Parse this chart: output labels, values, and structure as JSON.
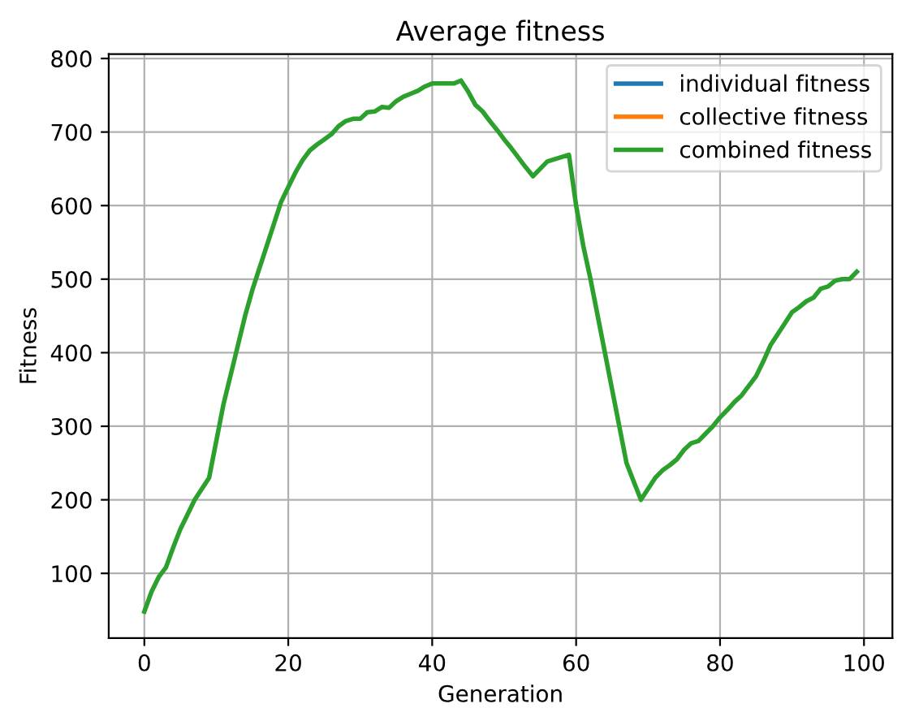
{
  "chart_data": {
    "type": "line",
    "title": "Average fitness",
    "xlabel": "Generation",
    "ylabel": "Fitness",
    "x": [
      0,
      1,
      2,
      3,
      4,
      5,
      6,
      7,
      8,
      9,
      10,
      11,
      12,
      13,
      14,
      15,
      16,
      17,
      18,
      19,
      20,
      21,
      22,
      23,
      24,
      25,
      26,
      27,
      28,
      29,
      30,
      31,
      32,
      33,
      34,
      35,
      36,
      37,
      38,
      39,
      40,
      41,
      42,
      43,
      44,
      45,
      46,
      47,
      48,
      49,
      50,
      51,
      52,
      53,
      54,
      55,
      56,
      57,
      58,
      59,
      60,
      61,
      62,
      63,
      64,
      65,
      66,
      67,
      68,
      69,
      70,
      71,
      72,
      73,
      74,
      75,
      76,
      77,
      78,
      79,
      80,
      81,
      82,
      83,
      84,
      85,
      86,
      87,
      88,
      89,
      90,
      91,
      92,
      93,
      94,
      95,
      96,
      97,
      98,
      99
    ],
    "series": [
      {
        "name": "individual fitness",
        "color": "#1f77b4",
        "values": [
          null,
          null,
          null,
          null,
          null,
          null,
          null,
          null,
          null,
          null,
          null,
          null,
          null,
          null,
          null,
          null,
          null,
          null,
          null,
          null,
          null,
          null,
          null,
          null,
          null,
          null,
          null,
          null,
          null,
          null,
          null,
          null,
          null,
          null,
          null,
          null,
          null,
          null,
          null,
          null,
          null,
          null,
          null,
          null,
          null,
          null,
          null,
          null,
          null,
          null,
          null,
          null,
          null,
          null,
          null,
          null,
          null,
          null,
          null,
          null,
          null,
          null,
          null,
          null,
          null,
          null,
          null,
          null,
          null,
          null,
          null,
          null,
          null,
          null,
          null,
          null,
          null,
          null,
          null,
          null,
          null,
          null,
          null,
          null,
          null,
          null,
          null,
          null,
          null,
          null,
          null,
          null,
          null,
          null,
          null,
          null,
          null,
          null,
          null,
          null
        ]
      },
      {
        "name": "collective fitness",
        "color": "#ff7f0e",
        "values": [
          null,
          null,
          null,
          null,
          null,
          null,
          null,
          null,
          null,
          null,
          null,
          null,
          null,
          null,
          null,
          null,
          null,
          null,
          null,
          null,
          null,
          null,
          null,
          null,
          null,
          null,
          null,
          null,
          null,
          null,
          null,
          null,
          null,
          null,
          null,
          null,
          null,
          null,
          null,
          null,
          null,
          null,
          null,
          null,
          null,
          null,
          null,
          null,
          null,
          null,
          null,
          null,
          null,
          null,
          null,
          null,
          null,
          null,
          null,
          null,
          null,
          null,
          null,
          null,
          null,
          null,
          null,
          null,
          null,
          null,
          null,
          null,
          null,
          null,
          null,
          null,
          null,
          null,
          null,
          null,
          null,
          null,
          null,
          null,
          null,
          null,
          null,
          null,
          null,
          null,
          null,
          null,
          null,
          null,
          null,
          null,
          null,
          null,
          null,
          null
        ]
      },
      {
        "name": "combined fitness",
        "color": "#2ca02c",
        "values": [
          48,
          75,
          95,
          108,
          135,
          160,
          180,
          200,
          215,
          230,
          280,
          330,
          370,
          410,
          450,
          485,
          515,
          545,
          575,
          605,
          625,
          645,
          662,
          675,
          683,
          690,
          697,
          708,
          715,
          718,
          718,
          727,
          728,
          734,
          733,
          742,
          748,
          752,
          756,
          762,
          766,
          766,
          766,
          766,
          770,
          755,
          737,
          728,
          715,
          703,
          690,
          678,
          665,
          652,
          640,
          650,
          660,
          663,
          666,
          669,
          600,
          545,
          500,
          450,
          400,
          350,
          300,
          250,
          225,
          200,
          215,
          230,
          240,
          247,
          255,
          268,
          277,
          280,
          290,
          300,
          312,
          322,
          333,
          342,
          355,
          368,
          388,
          410,
          425,
          440,
          455,
          462,
          470,
          475,
          487,
          490,
          498,
          500,
          500,
          510
        ]
      }
    ],
    "xlim": [
      -4.95,
      103.95
    ],
    "ylim": [
      12,
      806
    ],
    "xticks": [
      0,
      20,
      40,
      60,
      80,
      100
    ],
    "yticks": [
      100,
      200,
      300,
      400,
      500,
      600,
      700,
      800
    ],
    "grid": true,
    "legend": "top right"
  }
}
